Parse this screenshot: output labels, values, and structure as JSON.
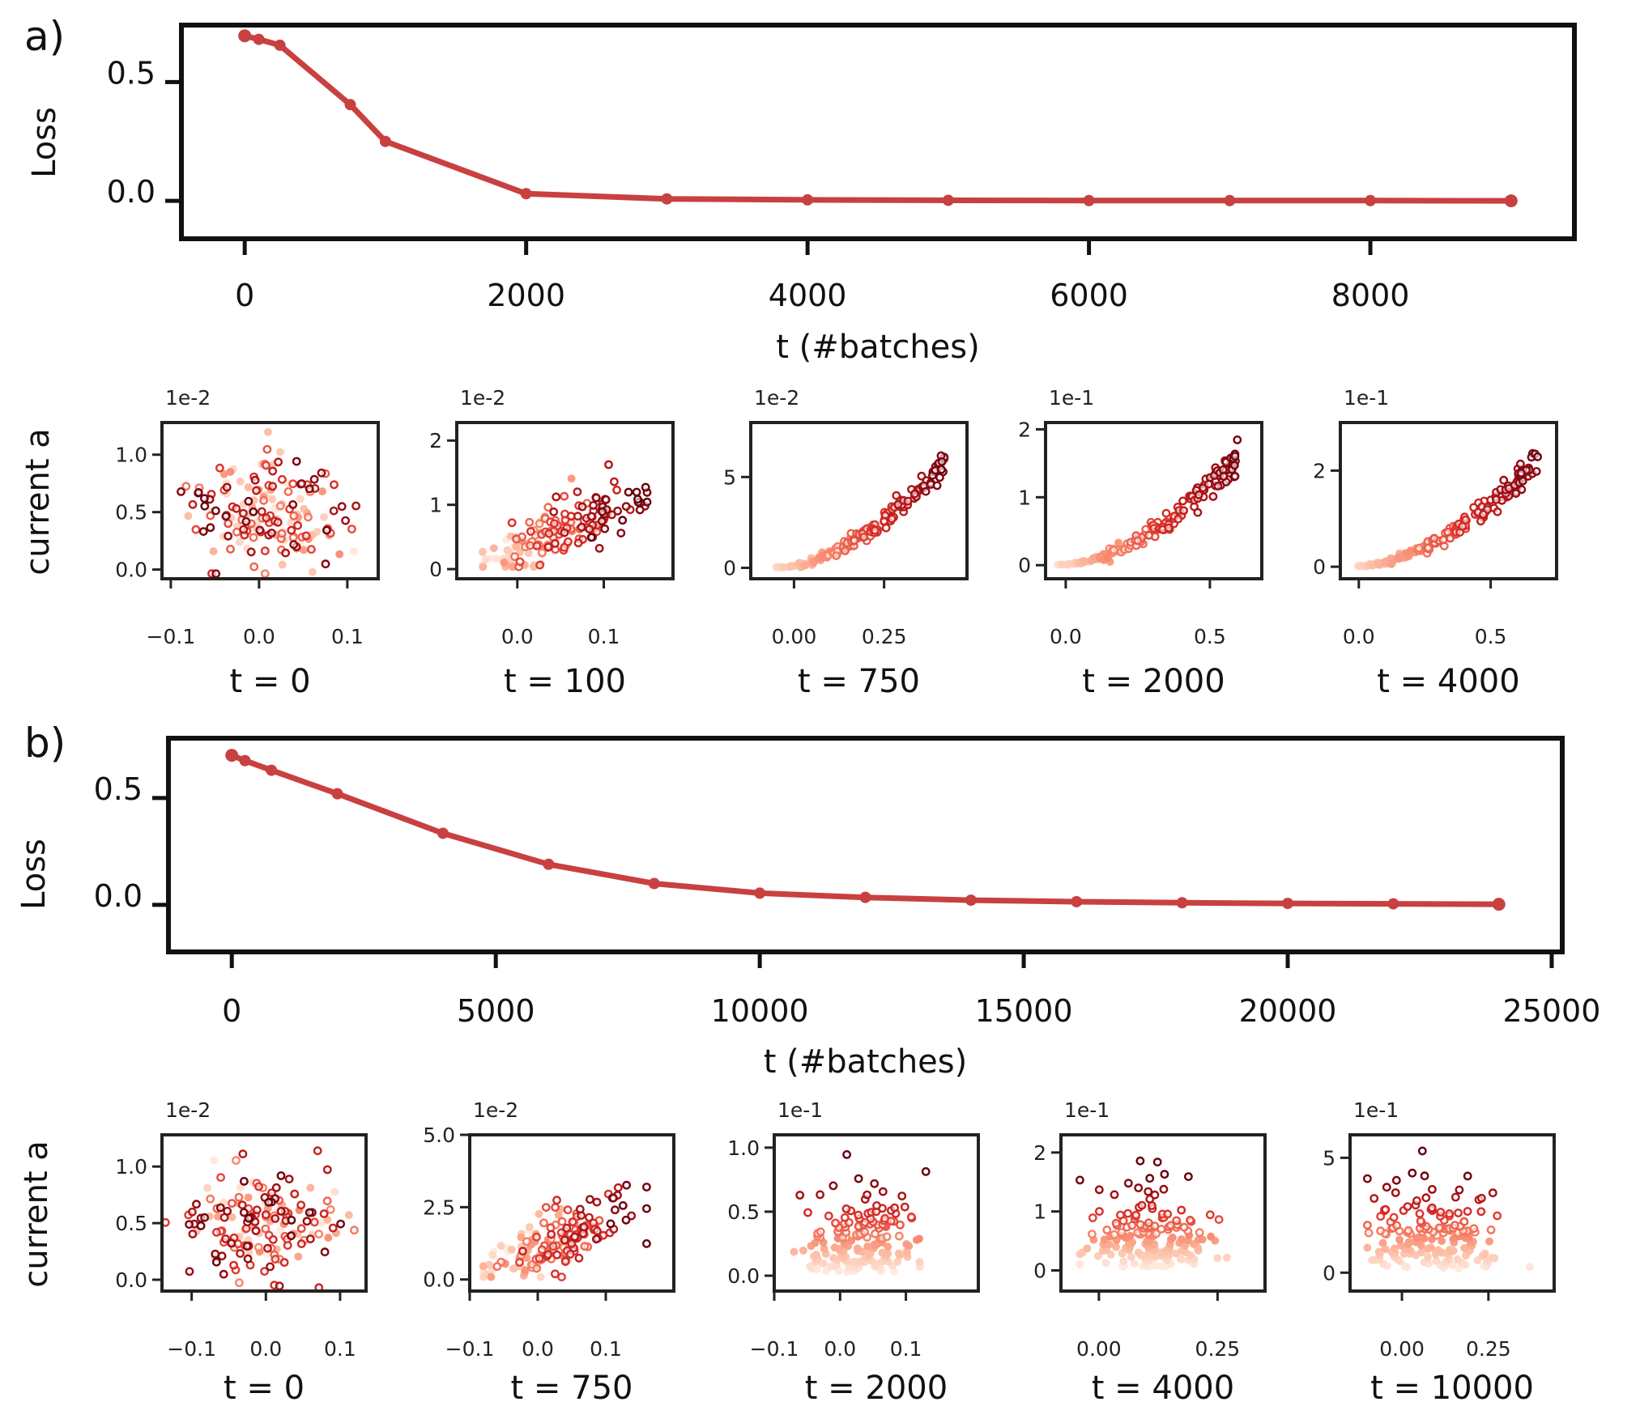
{
  "panels": [
    {
      "label": "a)",
      "loss": {
        "type": "line",
        "ylabel": "Loss",
        "xlabel": "t (#batches)",
        "color": "#c94040",
        "xlim": [
          -450,
          9450
        ],
        "ylim": [
          -0.16,
          0.74
        ],
        "xticks": [
          0,
          2000,
          4000,
          6000,
          8000
        ],
        "xtick_labels": [
          "0",
          "2000",
          "4000",
          "6000",
          "8000"
        ],
        "yticks": [
          0.5,
          0.0
        ],
        "ytick_labels": [
          "0.5",
          "0.0"
        ],
        "x": [
          0,
          100,
          250,
          750,
          1000,
          2000,
          3000,
          4000,
          5000,
          6000,
          7000,
          8000,
          9000
        ],
        "y": [
          0.695,
          0.68,
          0.655,
          0.405,
          0.25,
          0.03,
          0.008,
          0.004,
          0.002,
          0.001,
          0.001,
          0.001,
          0.0
        ]
      },
      "scatter_ylabel": "current a",
      "scatters": [
        {
          "title": "t = 0",
          "multiplier": "1e-2",
          "xlim": [
            -0.11,
            0.135
          ],
          "ylim": [
            -0.08,
            1.28
          ],
          "xticks": [
            -0.1,
            0.0,
            0.1
          ],
          "xtick_labels": [
            "−0.1",
            "0.0",
            "0.1"
          ],
          "yticks": [
            0.0,
            0.5,
            1.0
          ],
          "ytick_labels": [
            "0.0",
            "0.5",
            "1.0"
          ],
          "pattern": "random",
          "xr": [
            -0.08,
            0.1
          ],
          "ymax": 1.1,
          "seed": 11
        },
        {
          "title": "t = 100",
          "multiplier": "1e-2",
          "xlim": [
            -0.07,
            0.18
          ],
          "ylim": [
            -0.15,
            2.28
          ],
          "xticks": [
            0.0,
            0.1
          ],
          "xtick_labels": [
            "0.0",
            "0.1"
          ],
          "yticks": [
            0,
            1,
            2
          ],
          "ytick_labels": [
            "0",
            "1",
            "2"
          ],
          "pattern": "linear",
          "xr": [
            -0.04,
            0.15
          ],
          "ymax": 1.8,
          "seed": 23
        },
        {
          "title": "t = 750",
          "multiplier": "1e-2",
          "xlim": [
            -0.12,
            0.48
          ],
          "ylim": [
            -0.6,
            8.0
          ],
          "xticks": [
            0.0,
            0.25
          ],
          "xtick_labels": [
            "0.00",
            "0.25"
          ],
          "yticks": [
            0,
            5
          ],
          "ytick_labels": [
            "0",
            "5"
          ],
          "pattern": "curve",
          "xr": [
            -0.05,
            0.42
          ],
          "ymax": 7.2,
          "seed": 37
        },
        {
          "title": "t = 2000",
          "multiplier": "1e-1",
          "xlim": [
            -0.07,
            0.68
          ],
          "ylim": [
            -0.2,
            2.1
          ],
          "xticks": [
            0.0,
            0.5
          ],
          "xtick_labels": [
            "0.0",
            "0.5"
          ],
          "yticks": [
            0,
            1,
            2
          ],
          "ytick_labels": [
            "0",
            "1",
            "2"
          ],
          "pattern": "curve",
          "xr": [
            -0.03,
            0.6
          ],
          "ymax": 1.95,
          "seed": 41
        },
        {
          "title": "t = 4000",
          "multiplier": "1e-1",
          "xlim": [
            -0.07,
            0.75
          ],
          "ylim": [
            -0.25,
            3.0
          ],
          "xticks": [
            0.0,
            0.5
          ],
          "xtick_labels": [
            "0.0",
            "0.5"
          ],
          "yticks": [
            0,
            2
          ],
          "ytick_labels": [
            "0",
            "2"
          ],
          "pattern": "curve",
          "xr": [
            -0.02,
            0.68
          ],
          "ymax": 2.7,
          "seed": 53
        }
      ]
    },
    {
      "label": "b)",
      "loss": {
        "type": "line",
        "ylabel": "Loss",
        "xlabel": "t (#batches)",
        "color": "#c94040",
        "xlim": [
          -1200,
          25200
        ],
        "ylim": [
          -0.22,
          0.78
        ],
        "xticks": [
          0,
          5000,
          10000,
          15000,
          20000,
          25000
        ],
        "xtick_labels": [
          "0",
          "5000",
          "10000",
          "15000",
          "20000",
          "25000"
        ],
        "yticks": [
          0.5,
          0.0
        ],
        "ytick_labels": [
          "0.5",
          "0.0"
        ],
        "x": [
          0,
          250,
          750,
          2000,
          4000,
          6000,
          8000,
          10000,
          12000,
          14000,
          16000,
          18000,
          20000,
          22000,
          24000
        ],
        "y": [
          0.7,
          0.675,
          0.63,
          0.52,
          0.335,
          0.19,
          0.1,
          0.055,
          0.035,
          0.022,
          0.015,
          0.01,
          0.007,
          0.005,
          0.003
        ]
      },
      "scatter_ylabel": "current a",
      "scatters": [
        {
          "title": "t = 0",
          "multiplier": "1e-2",
          "xlim": [
            -0.14,
            0.135
          ],
          "ylim": [
            -0.1,
            1.28
          ],
          "xticks": [
            -0.1,
            0.0,
            0.1
          ],
          "xtick_labels": [
            "−0.1",
            "0.0",
            "0.1"
          ],
          "yticks": [
            0.0,
            0.5,
            1.0
          ],
          "ytick_labels": [
            "0.0",
            "0.5",
            "1.0"
          ],
          "pattern": "random",
          "xr": [
            -0.11,
            0.11
          ],
          "ymax": 1.1,
          "seed": 67
        },
        {
          "title": "t = 750",
          "multiplier": "1e-2",
          "xlim": [
            -0.1,
            0.2
          ],
          "ylim": [
            -0.4,
            5.0
          ],
          "xticks": [
            -0.1,
            0.0,
            0.1
          ],
          "xtick_labels": [
            "−0.1",
            "0.0",
            "0.1"
          ],
          "yticks": [
            0.0,
            2.5,
            5.0
          ],
          "ytick_labels": [
            "0.0",
            "2.5",
            "5.0"
          ],
          "pattern": "linear",
          "xr": [
            -0.08,
            0.16
          ],
          "ymax": 4.3,
          "seed": 71
        },
        {
          "title": "t = 2000",
          "multiplier": "1e-1",
          "xlim": [
            -0.1,
            0.21
          ],
          "ylim": [
            -0.12,
            1.1
          ],
          "xticks": [
            -0.1,
            0.0,
            0.1
          ],
          "xtick_labels": [
            "−0.1",
            "0.0",
            "0.1"
          ],
          "yticks": [
            0.0,
            0.5,
            1.0
          ],
          "ytick_labels": [
            "0.0",
            "0.5",
            "1.0"
          ],
          "pattern": "blob",
          "xr": [
            -0.07,
            0.16
          ],
          "ymax": 1.0,
          "seed": 83
        },
        {
          "title": "t = 4000",
          "multiplier": "1e-1",
          "xlim": [
            -0.08,
            0.35
          ],
          "ylim": [
            -0.35,
            2.3
          ],
          "xticks": [
            0.0,
            0.25
          ],
          "xtick_labels": [
            "0.00",
            "0.25"
          ],
          "yticks": [
            0,
            1,
            2
          ],
          "ytick_labels": [
            "0",
            "1",
            "2"
          ],
          "pattern": "blob",
          "xr": [
            -0.04,
            0.3
          ],
          "ymax": 2.05,
          "seed": 97
        },
        {
          "title": "t = 10000",
          "multiplier": "1e-1",
          "xlim": [
            -0.15,
            0.44
          ],
          "ylim": [
            -0.8,
            6.0
          ],
          "xticks": [
            0.0,
            0.25
          ],
          "xtick_labels": [
            "0.00",
            "0.25"
          ],
          "yticks": [
            0,
            5
          ],
          "ytick_labels": [
            "0",
            "5"
          ],
          "pattern": "blob",
          "xr": [
            -0.1,
            0.37
          ],
          "ymax": 5.5,
          "seed": 101
        }
      ]
    }
  ]
}
